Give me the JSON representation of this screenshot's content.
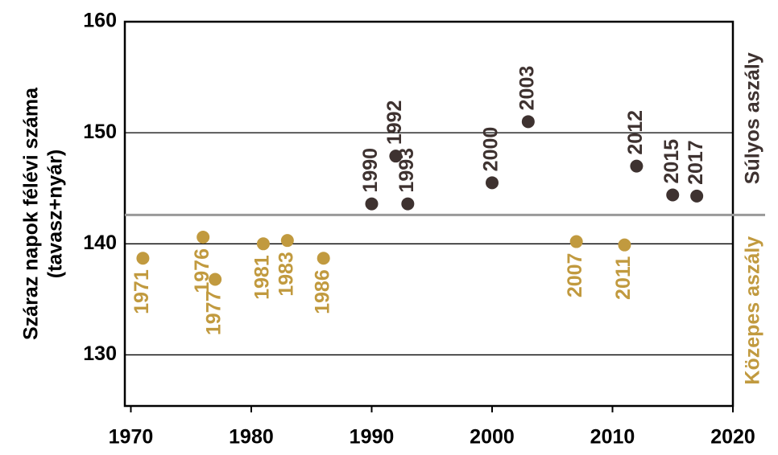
{
  "chart_data": {
    "type": "scatter",
    "ylabel": [
      "Száraz napok félévi száma",
      "(tavasz+nyár)"
    ],
    "xlim": [
      1969.5,
      2020
    ],
    "xticks": [
      1970,
      1980,
      1990,
      2000,
      2010,
      2020
    ],
    "ylim": [
      125.4,
      160
    ],
    "yticks": [
      130,
      140,
      150,
      160
    ],
    "grid": true,
    "threshold": 142.6,
    "threshold_color": "#999999",
    "series": [
      {
        "name": "Közepes aszály",
        "color": "#c19a3f",
        "x": [
          1971,
          1976,
          1977,
          1981,
          1983,
          1986,
          2007,
          2011
        ],
        "values": [
          138.7,
          140.6,
          136.8,
          140.0,
          140.3,
          138.7,
          140.2,
          139.9
        ]
      },
      {
        "name": "Súlyos aszály",
        "color": "#3e3230",
        "x": [
          1990,
          1992,
          1993,
          2000,
          2003,
          2012,
          2015,
          2017
        ],
        "values": [
          143.6,
          147.9,
          143.6,
          145.5,
          151.0,
          147.0,
          144.4,
          144.3
        ]
      }
    ]
  }
}
